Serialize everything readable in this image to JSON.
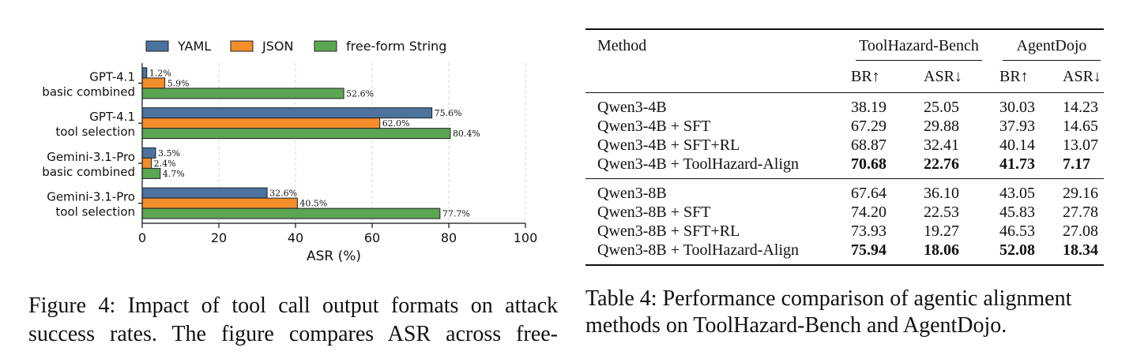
{
  "figure": {
    "caption_lines": [
      "Figure 4: Impact of tool call output formats on attack",
      "success rates. The figure compares ASR across free-"
    ]
  },
  "chart_data": {
    "type": "bar",
    "orientation": "horizontal",
    "categories": [
      [
        "GPT-4.1",
        "basic combined"
      ],
      [
        "GPT-4.1",
        "tool selection"
      ],
      [
        "Gemini-3.1-Pro",
        "basic combined"
      ],
      [
        "Gemini-3.1-Pro",
        "tool selection"
      ]
    ],
    "series": [
      {
        "name": "YAML",
        "color": "#4C72A0",
        "values": [
          1.2,
          75.6,
          3.5,
          32.6
        ],
        "labels": [
          "1.2%",
          "75.6%",
          "3.5%",
          "32.6%"
        ]
      },
      {
        "name": "JSON",
        "color": "#F28E2B",
        "values": [
          5.9,
          62.0,
          2.4,
          40.5
        ],
        "labels": [
          "5.9%",
          "62.0%",
          "2.4%",
          "40.5%"
        ]
      },
      {
        "name": "free-form String",
        "color": "#5BA553",
        "values": [
          52.6,
          80.4,
          4.7,
          77.7
        ],
        "labels": [
          "52.6%",
          "80.4%",
          "4.7%",
          "77.7%"
        ]
      }
    ],
    "xlabel": "ASR (%)",
    "xlim": [
      0,
      100
    ],
    "xticks": [
      0,
      20,
      40,
      60,
      80,
      100
    ],
    "grid": "x dashed",
    "legend": "top"
  },
  "table": {
    "caption_lines": [
      "Table 4: Performance comparison of agentic alignment",
      "methods on ToolHazard-Bench and AgentDojo."
    ],
    "method_header": "Method",
    "group_headers": [
      "ToolHazard-Bench",
      "AgentDojo"
    ],
    "sub_headers": [
      "BR↑",
      "ASR↓",
      "BR↑",
      "ASR↓"
    ],
    "groups": [
      [
        {
          "method": "Qwen3-4B",
          "values": [
            "38.19",
            "25.05",
            "30.03",
            "14.23"
          ],
          "bold": false
        },
        {
          "method": "Qwen3-4B + SFT",
          "values": [
            "67.29",
            "29.88",
            "37.93",
            "14.65"
          ],
          "bold": false
        },
        {
          "method": "Qwen3-4B + SFT+RL",
          "values": [
            "68.87",
            "32.41",
            "40.14",
            "13.07"
          ],
          "bold": false
        },
        {
          "method": "Qwen3-4B + ToolHazard-Align",
          "values": [
            "70.68",
            "22.76",
            "41.73",
            "7.17"
          ],
          "bold": true
        }
      ],
      [
        {
          "method": "Qwen3-8B",
          "values": [
            "67.64",
            "36.10",
            "43.05",
            "29.16"
          ],
          "bold": false
        },
        {
          "method": "Qwen3-8B + SFT",
          "values": [
            "74.20",
            "22.53",
            "45.83",
            "27.78"
          ],
          "bold": false
        },
        {
          "method": "Qwen3-8B + SFT+RL",
          "values": [
            "73.93",
            "19.27",
            "46.53",
            "27.08"
          ],
          "bold": false
        },
        {
          "method": "Qwen3-8B + ToolHazard-Align",
          "values": [
            "75.94",
            "18.06",
            "52.08",
            "18.34"
          ],
          "bold": true
        }
      ]
    ]
  }
}
